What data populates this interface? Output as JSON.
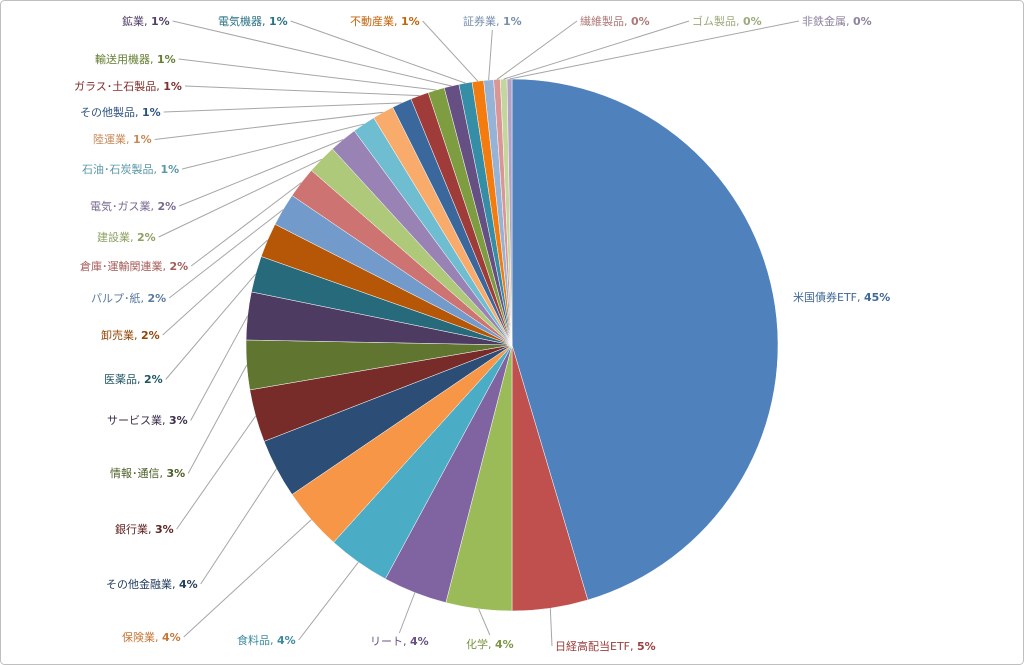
{
  "chart_data": {
    "type": "pie",
    "categories": [
      "米国債券ETF",
      "日経高配当ETF",
      "化学",
      "リート",
      "食料品",
      "保険業",
      "その他金融業",
      "銀行業",
      "情報･通信",
      "サービス業",
      "医薬品",
      "卸売業",
      "パルプ･紙",
      "倉庫･運輸関連業",
      "建設業",
      "電気･ガス業",
      "石油･石炭製品",
      "陸運業",
      "その他製品",
      "ガラス･土石製品",
      "輸送用機器",
      "鉱業",
      "電気機器",
      "不動産業",
      "証券業",
      "繊維製品",
      "ゴム製品",
      "非鉄金属"
    ],
    "values": [
      45.4,
      4.6,
      4.0,
      3.9,
      3.8,
      3.8,
      3.6,
      3.2,
      3.0,
      2.9,
      2.2,
      2.1,
      2.0,
      1.9,
      1.8,
      1.7,
      1.4,
      1.3,
      1.2,
      1.1,
      1.0,
      0.9,
      0.8,
      0.7,
      0.6,
      0.4,
      0.4,
      0.3
    ],
    "value_labels": [
      "45%",
      "5%",
      "4%",
      "4%",
      "4%",
      "4%",
      "4%",
      "3%",
      "3%",
      "3%",
      "2%",
      "2%",
      "2%",
      "2%",
      "2%",
      "2%",
      "1%",
      "1%",
      "1%",
      "1%",
      "1%",
      "1%",
      "1%",
      "1%",
      "1%",
      "0%",
      "0%",
      "0%"
    ],
    "colors": [
      "#4f81bd",
      "#c0504d",
      "#9bbb59",
      "#8064a2",
      "#4bacc6",
      "#f79646",
      "#2c4d75",
      "#772c2a",
      "#5f7530",
      "#4d3b62",
      "#276a7c",
      "#b65708",
      "#729aca",
      "#cd7371",
      "#afc97a",
      "#9983b5",
      "#6fbdd1",
      "#f9ab6b",
      "#3a679c",
      "#9f3b38",
      "#7e9d40",
      "#664f83",
      "#358ea6",
      "#f47c0e",
      "#95b3d7",
      "#d99694",
      "#c3d69b",
      "#b3a2c7"
    ]
  }
}
